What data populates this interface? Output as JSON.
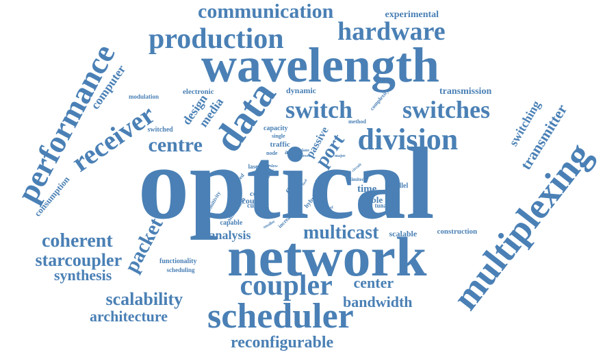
{
  "cloud": {
    "color": "#4a80b5",
    "words": [
      "optical",
      "network",
      "wavelength",
      "data",
      "multiplexing",
      "scheduler",
      "division",
      "switches",
      "switch",
      "production",
      "hardware",
      "communication",
      "coupler",
      "receiver",
      "performance",
      "centre",
      "multicast",
      "coherent",
      "starcoupler",
      "packet",
      "bandwidth",
      "center",
      "scalability",
      "port",
      "synthesis",
      "architecture",
      "reconfigurable",
      "transmitter",
      "switching",
      "computer",
      "media",
      "design",
      "analysis",
      "experimental",
      "transmission",
      "consumption",
      "scalable",
      "construction",
      "electronic",
      "modulation",
      "dynamic",
      "capacity",
      "traffic",
      "star",
      "time",
      "fiber",
      "enable",
      "count",
      "core",
      "simulation",
      "current",
      "capable",
      "functionality",
      "scheduling",
      "switched",
      "passive",
      "laser",
      "method",
      "parallel",
      "tunable",
      "single",
      "asic",
      "node",
      "hybrid",
      "tdma",
      "increase",
      "complexity",
      "limited",
      "sensitivity",
      "speed",
      "fast",
      "slow",
      "plane",
      "power",
      "major",
      "higher",
      "circuit",
      "final",
      "smaller"
    ]
  }
}
